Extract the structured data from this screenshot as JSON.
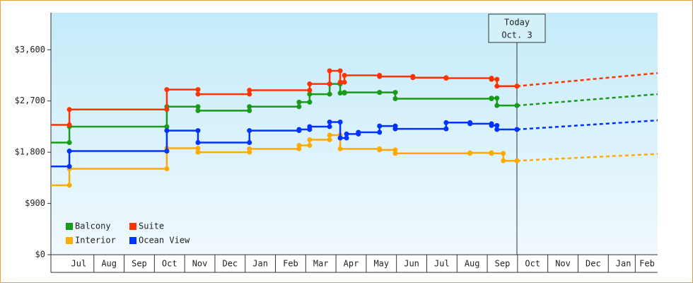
{
  "chart_data": {
    "type": "step",
    "xlim": [
      -0.42,
      19.63
    ],
    "ylim": [
      0,
      4250
    ],
    "yticks": [
      {
        "value": 0,
        "label": "$0"
      },
      {
        "value": 900,
        "label": "$900"
      },
      {
        "value": 1800,
        "label": "$1,800"
      },
      {
        "value": 2700,
        "label": "$2,700"
      },
      {
        "value": 3600,
        "label": "$3,600"
      }
    ],
    "xticks": [
      {
        "value": 0.5,
        "label": "Jul"
      },
      {
        "value": 1.5,
        "label": "Aug"
      },
      {
        "value": 2.5,
        "label": "Sep"
      },
      {
        "value": 3.5,
        "label": "Oct"
      },
      {
        "value": 4.5,
        "label": "Nov"
      },
      {
        "value": 5.5,
        "label": "Dec"
      },
      {
        "value": 6.5,
        "label": "Jan"
      },
      {
        "value": 7.5,
        "label": "Feb"
      },
      {
        "value": 8.5,
        "label": "Mar"
      },
      {
        "value": 9.5,
        "label": "Apr"
      },
      {
        "value": 10.5,
        "label": "May"
      },
      {
        "value": 11.5,
        "label": "Jun"
      },
      {
        "value": 12.5,
        "label": "Jul"
      },
      {
        "value": 13.5,
        "label": "Aug"
      },
      {
        "value": 14.5,
        "label": "Sep"
      },
      {
        "value": 15.5,
        "label": "Oct"
      },
      {
        "value": 16.5,
        "label": "Nov"
      },
      {
        "value": 17.5,
        "label": "Dec"
      },
      {
        "value": 18.5,
        "label": "Jan"
      },
      {
        "value": 19.28,
        "label": "Feb"
      }
    ],
    "today": {
      "x": 14.98,
      "label": [
        "Today",
        "Oct. 3"
      ]
    },
    "forecast_x": [
      14.98,
      19.63
    ],
    "series": [
      {
        "name": "Balcony",
        "color": "#1a9a1a",
        "x": [
          -0.42,
          0.19,
          3.41,
          4.44,
          6.14,
          7.78,
          8.13,
          8.79,
          9.14,
          9.28,
          10.44,
          10.96,
          14.14,
          14.32,
          14.98
        ],
        "values": [
          1970,
          2250,
          2600,
          2530,
          2600,
          2680,
          2820,
          3000,
          2840,
          2850,
          2850,
          2740,
          2750,
          2620,
          2620
        ],
        "forecast_values": [
          2620,
          2820
        ]
      },
      {
        "name": "Suite",
        "color": "#ff3300",
        "x": [
          -0.42,
          0.19,
          3.41,
          4.44,
          6.14,
          8.13,
          8.79,
          9.14,
          9.28,
          10.44,
          11.54,
          12.64,
          14.14,
          14.32,
          14.98
        ],
        "values": [
          2280,
          2550,
          2900,
          2820,
          2890,
          3000,
          3230,
          3030,
          3150,
          3130,
          3110,
          3100,
          3080,
          2960,
          2960
        ],
        "forecast_values": [
          2960,
          3190
        ]
      },
      {
        "name": "Interior",
        "color": "#ffaa00",
        "x": [
          -0.42,
          0.19,
          3.41,
          4.44,
          6.14,
          7.78,
          8.13,
          8.79,
          9.14,
          10.44,
          10.96,
          13.43,
          14.14,
          14.53,
          14.98
        ],
        "values": [
          1220,
          1510,
          1870,
          1800,
          1860,
          1920,
          2020,
          2100,
          1860,
          1840,
          1780,
          1790,
          1780,
          1650,
          1650
        ],
        "forecast_values": [
          1650,
          1770
        ]
      },
      {
        "name": "Ocean View",
        "color": "#0033ff",
        "x": [
          -0.42,
          0.19,
          3.41,
          4.44,
          6.14,
          7.78,
          8.13,
          8.79,
          9.14,
          9.35,
          9.74,
          10.44,
          10.96,
          12.64,
          13.43,
          14.14,
          14.32,
          14.98
        ],
        "values": [
          1550,
          1820,
          2180,
          1970,
          2180,
          2200,
          2250,
          2330,
          2050,
          2120,
          2150,
          2260,
          2210,
          2320,
          2300,
          2270,
          2200,
          2200
        ],
        "forecast_values": [
          2200,
          2360
        ]
      }
    ]
  }
}
